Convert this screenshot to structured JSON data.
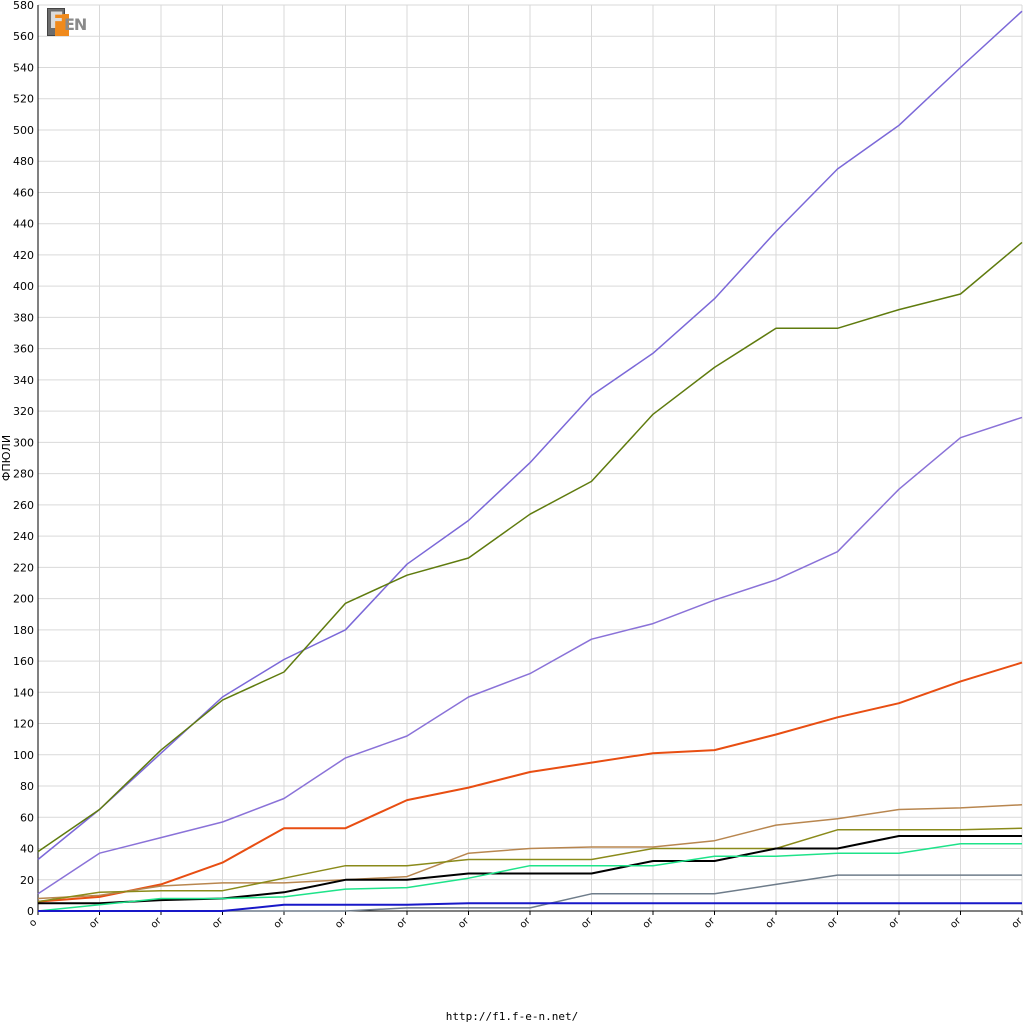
{
  "footer_url": "http://f1.f-e-n.net/",
  "logo_text": "F1EN",
  "chart_data": {
    "type": "line",
    "title": "",
    "ylabel": "ФПЮЛИ",
    "xlabel": "",
    "ylim": [
      0,
      580
    ],
    "ytick_step": 20,
    "grid": true,
    "x_tick_labels": [
      "o",
      "or",
      "or",
      "or",
      "or",
      "or",
      "or",
      "or",
      "or",
      "or",
      "or",
      "or",
      "or",
      "or",
      "or",
      "or",
      "or"
    ],
    "x": [
      0,
      1,
      2,
      3,
      4,
      5,
      6,
      7,
      8,
      9,
      10,
      11,
      12,
      13,
      14,
      15,
      16
    ],
    "series": [
      {
        "color": "#7b68d8",
        "values": [
          33,
          65,
          101,
          137,
          161,
          180,
          222,
          250,
          287,
          330,
          357,
          392,
          435,
          475,
          503,
          540,
          576
        ]
      },
      {
        "color": "#5f7b0e",
        "values": [
          38,
          65,
          103,
          135,
          153,
          197,
          215,
          226,
          254,
          275,
          318,
          348,
          373,
          373,
          385,
          395,
          428
        ]
      },
      {
        "color": "#8a72d8",
        "values": [
          11,
          37,
          47,
          57,
          72,
          98,
          112,
          137,
          152,
          174,
          184,
          199,
          212,
          230,
          270,
          303,
          316
        ]
      },
      {
        "color": "#e84e12",
        "values": [
          6,
          9,
          17,
          31,
          53,
          53,
          71,
          79,
          89,
          95,
          101,
          103,
          113,
          124,
          133,
          147,
          159
        ]
      },
      {
        "color": "#b8864f",
        "values": [
          8,
          10,
          16,
          18,
          18,
          20,
          22,
          37,
          40,
          41,
          41,
          45,
          55,
          59,
          65,
          66,
          68
        ]
      },
      {
        "color": "#8a8a1a",
        "values": [
          6,
          12,
          13,
          13,
          21,
          29,
          29,
          33,
          33,
          33,
          40,
          40,
          40,
          52,
          52,
          52,
          53
        ]
      },
      {
        "color": "#000000",
        "values": [
          5,
          5,
          7,
          8,
          12,
          20,
          20,
          24,
          24,
          24,
          32,
          32,
          40,
          40,
          48,
          48,
          48
        ]
      },
      {
        "color": "#1ee38a",
        "values": [
          0,
          4,
          8,
          8,
          9,
          14,
          15,
          21,
          29,
          29,
          29,
          35,
          35,
          37,
          37,
          43,
          43
        ]
      },
      {
        "color": "#6e7c8a",
        "values": [
          0,
          0,
          0,
          0,
          0,
          0,
          2,
          2,
          2,
          11,
          11,
          11,
          17,
          23,
          23,
          23,
          23
        ]
      },
      {
        "color": "#1818c8",
        "values": [
          0,
          0,
          0,
          0,
          4,
          4,
          4,
          5,
          5,
          5,
          5,
          5,
          5,
          5,
          5,
          5,
          5
        ]
      }
    ]
  }
}
